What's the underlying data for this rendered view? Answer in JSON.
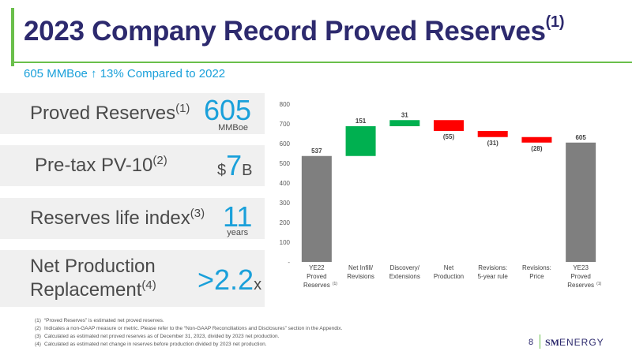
{
  "header": {
    "title": "2023 Company Record Proved Reserves",
    "title_sup": "(1)",
    "subtitle": "605 MMBoe ↑ 13% Compared to 2022"
  },
  "metrics": [
    {
      "label": "Proved Reserves",
      "sup": "(1)",
      "value": "605",
      "unit": "MMBoe"
    },
    {
      "label": "Pre-tax PV-10",
      "sup": "(2)",
      "prefix": "$",
      "value": "7",
      "unit": "B"
    },
    {
      "label": "Reserves life index",
      "sup": "(3)",
      "value": "11",
      "unit": "years"
    },
    {
      "label_line1": "Net Production",
      "label_line2": "Replacement",
      "sup": "(4)",
      "value": ">2.2",
      "unit": "x"
    }
  ],
  "chart_data": {
    "type": "waterfall",
    "ylim": [
      0,
      800
    ],
    "yticks": [
      "-",
      "100",
      "200",
      "300",
      "400",
      "500",
      "600",
      "700",
      "800"
    ],
    "categories": [
      {
        "line1": "YE22",
        "line2": "Proved",
        "line3": "Reserves",
        "sup": "(1)"
      },
      {
        "line1": "Net Infill/",
        "line2": "Revisions"
      },
      {
        "line1": "Discovery/",
        "line2": "Extensions"
      },
      {
        "line1": "Net",
        "line2": "Production"
      },
      {
        "line1": "Revisions:",
        "line2": "5-year rule"
      },
      {
        "line1": "Revisions:",
        "line2": "Price"
      },
      {
        "line1": "YE23",
        "line2": "Proved",
        "line3": "Reserves",
        "sup": "(1)"
      }
    ],
    "bars": [
      {
        "kind": "total",
        "start": 0,
        "end": 537,
        "label": "537"
      },
      {
        "kind": "increase",
        "start": 537,
        "end": 688,
        "label": "151"
      },
      {
        "kind": "increase",
        "start": 688,
        "end": 719,
        "label": "31"
      },
      {
        "kind": "decrease",
        "start": 719,
        "end": 664,
        "label": "(55)"
      },
      {
        "kind": "decrease",
        "start": 664,
        "end": 633,
        "label": "(31)"
      },
      {
        "kind": "decrease",
        "start": 633,
        "end": 605,
        "label": "(28)"
      },
      {
        "kind": "total",
        "start": 0,
        "end": 605,
        "label": "605"
      }
    ],
    "colors": {
      "total": "#7f7f7f",
      "increase": "#00b050",
      "decrease": "#ff0000"
    }
  },
  "footnotes": [
    {
      "num": "(1)",
      "text": "“Proved Reserves” is estimated net proved reserves."
    },
    {
      "num": "(2)",
      "text": "Indicates a non-GAAP measure or metric. Please refer to the “Non-GAAP Reconciliations and Disclosures” section in the Appendix."
    },
    {
      "num": "(3)",
      "text": "Calculated as estimated net proved reserves as of December 31, 2023, divided by 2023 net production."
    },
    {
      "num": "(4)",
      "text": "Calculated as estimated net change in reserves before production divided by 2023 net production."
    }
  ],
  "footer": {
    "page_number": "8",
    "logo_sm": "SM",
    "logo_energy": "ENERGY"
  }
}
